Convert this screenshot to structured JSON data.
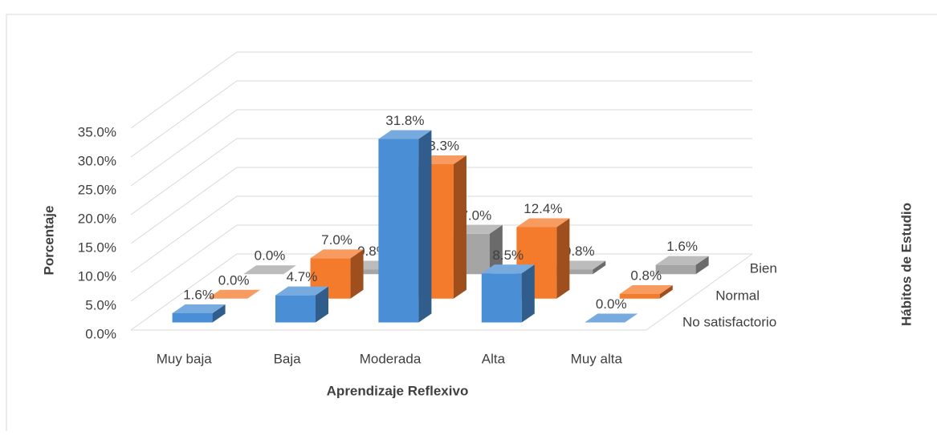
{
  "chart_data": {
    "type": "bar3d",
    "x_label": "Aprendizaje Reflexivo",
    "y_label": "Porcentaje",
    "z_label": "Hábitos de Estudio",
    "categories": [
      "Muy baja",
      "Baja",
      "Moderada",
      "Alta",
      "Muy alta"
    ],
    "series": [
      {
        "name": "No satisfactorio",
        "color": "#4a8fd6",
        "values": [
          1.6,
          4.7,
          31.8,
          8.5,
          0.0
        ],
        "value_labels": [
          "1.6%",
          "4.7%",
          "31.8%",
          "8.5%",
          "0.0%"
        ]
      },
      {
        "name": "Normal",
        "color": "#f47a2c",
        "values": [
          0.0,
          7.0,
          23.3,
          12.4,
          0.8
        ],
        "value_labels": [
          "0.0%",
          "7.0%",
          "23.3%",
          "12.4%",
          "0.8%"
        ]
      },
      {
        "name": "Bien",
        "color": "#a5a5a5",
        "values": [
          0.0,
          0.8,
          7.0,
          0.8,
          1.6
        ],
        "value_labels": [
          "0.0%",
          "0.8%",
          "7.0%",
          "0.8%",
          "1.6%"
        ]
      }
    ],
    "ylim": [
      0,
      35
    ],
    "yticks": [
      {
        "value": 0,
        "label": "0.0%"
      },
      {
        "value": 5,
        "label": "5.0%"
      },
      {
        "value": 10,
        "label": "10.0%"
      },
      {
        "value": 15,
        "label": "15.0%"
      },
      {
        "value": 20,
        "label": "20.0%"
      },
      {
        "value": 25,
        "label": "25.0%"
      },
      {
        "value": 30,
        "label": "30.0%"
      },
      {
        "value": 35,
        "label": "35.0%"
      }
    ],
    "grid": true
  }
}
